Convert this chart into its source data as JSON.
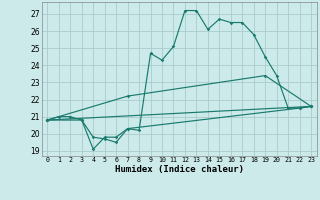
{
  "xlabel": "Humidex (Indice chaleur)",
  "bg_color": "#cceaea",
  "line_color": "#1a7a6e",
  "grid_color": "#b8d8d8",
  "xlim": [
    -0.5,
    23.5
  ],
  "ylim": [
    18.7,
    27.7
  ],
  "yticks": [
    19,
    20,
    21,
    22,
    23,
    24,
    25,
    26,
    27
  ],
  "xticks": [
    0,
    1,
    2,
    3,
    4,
    5,
    6,
    7,
    8,
    9,
    10,
    11,
    12,
    13,
    14,
    15,
    16,
    17,
    18,
    19,
    20,
    21,
    22,
    23
  ],
  "line1_x": [
    0,
    1,
    2,
    3,
    4,
    5,
    6,
    7,
    8,
    9,
    10,
    11,
    12,
    13,
    14,
    15,
    16,
    17,
    18,
    19,
    20,
    21,
    22,
    23
  ],
  "line1_y": [
    20.8,
    21.0,
    21.0,
    20.8,
    19.8,
    19.7,
    19.5,
    20.3,
    20.2,
    24.7,
    24.3,
    25.1,
    27.2,
    27.2,
    26.1,
    26.7,
    26.5,
    26.5,
    25.8,
    24.5,
    23.4,
    21.5,
    21.5,
    21.6
  ],
  "line2_x": [
    0,
    3,
    4,
    5,
    6,
    7,
    22,
    23
  ],
  "line2_y": [
    20.8,
    20.8,
    19.1,
    19.8,
    19.8,
    20.3,
    21.5,
    21.6
  ],
  "line3_x": [
    0,
    23
  ],
  "line3_y": [
    20.8,
    21.6
  ],
  "line4_x": [
    0,
    7,
    19,
    23
  ],
  "line4_y": [
    20.8,
    22.2,
    23.4,
    21.6
  ]
}
